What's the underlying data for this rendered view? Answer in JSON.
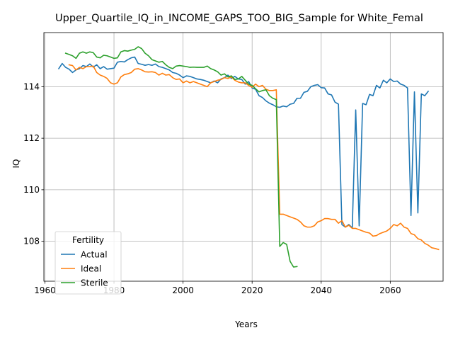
{
  "chart_data": {
    "type": "line",
    "title": "Upper_Quartile_IQ_in_INCOME_GAPS_TOO_BIG_Sample for White_Femal",
    "xlabel": "Years",
    "ylabel": "IQ",
    "xlim": [
      1959.7,
      2075.3
    ],
    "ylim": [
      106.45,
      116.1
    ],
    "x_ticks": [
      1960,
      1980,
      2000,
      2020,
      2040,
      2060
    ],
    "x_tick_labels": [
      "1960",
      "1980",
      "2000",
      "2020",
      "2040",
      "2060"
    ],
    "y_ticks": [
      108,
      110,
      112,
      114
    ],
    "y_tick_labels": [
      "108",
      "110",
      "112",
      "114"
    ],
    "grid": true,
    "legend": {
      "title": "Fertility",
      "placement": "lower-left"
    },
    "series": [
      {
        "name": "Actual",
        "color": "#1f77b4",
        "points": [
          [
            1964,
            114.7
          ],
          [
            1965,
            114.9
          ],
          [
            1966,
            114.75
          ],
          [
            1967,
            114.68
          ],
          [
            1968,
            114.55
          ],
          [
            1969,
            114.65
          ],
          [
            1970,
            114.7
          ],
          [
            1971,
            114.82
          ],
          [
            1972,
            114.78
          ],
          [
            1973,
            114.88
          ],
          [
            1974,
            114.76
          ],
          [
            1975,
            114.85
          ],
          [
            1976,
            114.7
          ],
          [
            1977,
            114.78
          ],
          [
            1978,
            114.68
          ],
          [
            1979,
            114.7
          ],
          [
            1980,
            114.72
          ],
          [
            1981,
            114.95
          ],
          [
            1982,
            114.98
          ],
          [
            1983,
            114.96
          ],
          [
            1984,
            115.05
          ],
          [
            1985,
            115.12
          ],
          [
            1986,
            115.15
          ],
          [
            1987,
            114.9
          ],
          [
            1988,
            114.87
          ],
          [
            1989,
            114.83
          ],
          [
            1990,
            114.86
          ],
          [
            1991,
            114.83
          ],
          [
            1992,
            114.88
          ],
          [
            1993,
            114.78
          ],
          [
            1994,
            114.75
          ],
          [
            1995,
            114.7
          ],
          [
            1996,
            114.65
          ],
          [
            1997,
            114.55
          ],
          [
            1998,
            114.52
          ],
          [
            1999,
            114.45
          ],
          [
            2000,
            114.35
          ],
          [
            2001,
            114.42
          ],
          [
            2002,
            114.4
          ],
          [
            2003,
            114.35
          ],
          [
            2004,
            114.3
          ],
          [
            2005,
            114.28
          ],
          [
            2006,
            114.25
          ],
          [
            2007,
            114.2
          ],
          [
            2008,
            114.15
          ],
          [
            2009,
            114.22
          ],
          [
            2010,
            114.15
          ],
          [
            2011,
            114.3
          ],
          [
            2012,
            114.35
          ],
          [
            2013,
            114.45
          ],
          [
            2014,
            114.32
          ],
          [
            2015,
            114.4
          ],
          [
            2016,
            114.3
          ],
          [
            2017,
            114.28
          ],
          [
            2018,
            114.1
          ],
          [
            2019,
            114.2
          ],
          [
            2020,
            113.95
          ],
          [
            2021,
            113.9
          ],
          [
            2022,
            113.65
          ],
          [
            2023,
            113.58
          ],
          [
            2024,
            113.45
          ],
          [
            2025,
            113.36
          ],
          [
            2026,
            113.3
          ],
          [
            2027,
            113.22
          ],
          [
            2028,
            113.2
          ],
          [
            2029,
            113.25
          ],
          [
            2030,
            113.22
          ],
          [
            2031,
            113.32
          ],
          [
            2032,
            113.35
          ],
          [
            2033,
            113.55
          ],
          [
            2034,
            113.55
          ],
          [
            2035,
            113.78
          ],
          [
            2036,
            113.82
          ],
          [
            2037,
            114.0
          ],
          [
            2038,
            114.05
          ],
          [
            2039,
            114.08
          ],
          [
            2040,
            113.96
          ],
          [
            2041,
            113.95
          ],
          [
            2042,
            113.72
          ],
          [
            2043,
            113.68
          ],
          [
            2044,
            113.4
          ],
          [
            2045,
            113.32
          ],
          [
            2046,
            108.65
          ],
          [
            2047,
            108.55
          ],
          [
            2048,
            108.65
          ],
          [
            2049,
            108.52
          ],
          [
            2050,
            113.1
          ],
          [
            2051,
            108.6
          ],
          [
            2052,
            113.35
          ],
          [
            2053,
            113.3
          ],
          [
            2054,
            113.7
          ],
          [
            2055,
            113.65
          ],
          [
            2056,
            114.05
          ],
          [
            2057,
            113.95
          ],
          [
            2058,
            114.25
          ],
          [
            2059,
            114.15
          ],
          [
            2060,
            114.3
          ],
          [
            2061,
            114.2
          ],
          [
            2062,
            114.22
          ],
          [
            2063,
            114.1
          ],
          [
            2064,
            114.05
          ],
          [
            2065,
            113.95
          ],
          [
            2066,
            109.0
          ],
          [
            2067,
            113.8
          ],
          [
            2068,
            109.1
          ],
          [
            2069,
            113.72
          ],
          [
            2070,
            113.65
          ],
          [
            2071,
            113.82
          ]
        ]
      },
      {
        "name": "Ideal",
        "color": "#ff7f0e",
        "points": [
          [
            1967,
            114.85
          ],
          [
            1968,
            114.82
          ],
          [
            1969,
            114.65
          ],
          [
            1970,
            114.75
          ],
          [
            1971,
            114.7
          ],
          [
            1972,
            114.78
          ],
          [
            1973,
            114.78
          ],
          [
            1974,
            114.8
          ],
          [
            1975,
            114.55
          ],
          [
            1976,
            114.45
          ],
          [
            1977,
            114.4
          ],
          [
            1978,
            114.32
          ],
          [
            1979,
            114.15
          ],
          [
            1980,
            114.1
          ],
          [
            1981,
            114.15
          ],
          [
            1982,
            114.38
          ],
          [
            1983,
            114.47
          ],
          [
            1984,
            114.5
          ],
          [
            1985,
            114.55
          ],
          [
            1986,
            114.68
          ],
          [
            1987,
            114.7
          ],
          [
            1988,
            114.65
          ],
          [
            1989,
            114.58
          ],
          [
            1990,
            114.57
          ],
          [
            1991,
            114.58
          ],
          [
            1992,
            114.55
          ],
          [
            1993,
            114.45
          ],
          [
            1994,
            114.52
          ],
          [
            1995,
            114.45
          ],
          [
            1996,
            114.47
          ],
          [
            1997,
            114.35
          ],
          [
            1998,
            114.28
          ],
          [
            1999,
            114.3
          ],
          [
            2000,
            114.15
          ],
          [
            2001,
            114.22
          ],
          [
            2002,
            114.15
          ],
          [
            2003,
            114.2
          ],
          [
            2004,
            114.15
          ],
          [
            2005,
            114.1
          ],
          [
            2006,
            114.05
          ],
          [
            2007,
            114.0
          ],
          [
            2008,
            114.15
          ],
          [
            2009,
            114.2
          ],
          [
            2010,
            114.25
          ],
          [
            2011,
            114.28
          ],
          [
            2012,
            114.35
          ],
          [
            2013,
            114.32
          ],
          [
            2014,
            114.38
          ],
          [
            2015,
            114.25
          ],
          [
            2016,
            114.18
          ],
          [
            2017,
            114.15
          ],
          [
            2018,
            114.15
          ],
          [
            2019,
            114.05
          ],
          [
            2020,
            113.98
          ],
          [
            2021,
            114.1
          ],
          [
            2022,
            114.0
          ],
          [
            2023,
            114.05
          ],
          [
            2024,
            113.9
          ],
          [
            2025,
            113.85
          ],
          [
            2026,
            113.85
          ],
          [
            2027,
            113.88
          ],
          [
            2028,
            109.05
          ],
          [
            2029,
            109.05
          ],
          [
            2030,
            109.0
          ],
          [
            2031,
            108.95
          ],
          [
            2032,
            108.9
          ],
          [
            2033,
            108.85
          ],
          [
            2034,
            108.75
          ],
          [
            2035,
            108.6
          ],
          [
            2036,
            108.55
          ],
          [
            2037,
            108.55
          ],
          [
            2038,
            108.6
          ],
          [
            2039,
            108.75
          ],
          [
            2040,
            108.8
          ],
          [
            2041,
            108.88
          ],
          [
            2042,
            108.88
          ],
          [
            2043,
            108.85
          ],
          [
            2044,
            108.85
          ],
          [
            2045,
            108.7
          ],
          [
            2046,
            108.8
          ],
          [
            2047,
            108.55
          ],
          [
            2048,
            108.62
          ],
          [
            2049,
            108.5
          ],
          [
            2050,
            108.5
          ],
          [
            2051,
            108.45
          ],
          [
            2052,
            108.4
          ],
          [
            2053,
            108.35
          ],
          [
            2054,
            108.32
          ],
          [
            2055,
            108.2
          ],
          [
            2056,
            108.22
          ],
          [
            2057,
            108.3
          ],
          [
            2058,
            108.35
          ],
          [
            2059,
            108.4
          ],
          [
            2060,
            108.5
          ],
          [
            2061,
            108.65
          ],
          [
            2062,
            108.6
          ],
          [
            2063,
            108.7
          ],
          [
            2064,
            108.55
          ],
          [
            2065,
            108.5
          ],
          [
            2066,
            108.3
          ],
          [
            2067,
            108.25
          ],
          [
            2068,
            108.1
          ],
          [
            2069,
            108.05
          ],
          [
            2070,
            107.92
          ],
          [
            2071,
            107.85
          ],
          [
            2072,
            107.75
          ],
          [
            2073,
            107.72
          ],
          [
            2074,
            107.68
          ]
        ]
      },
      {
        "name": "Sterile",
        "color": "#2ca02c",
        "points": [
          [
            1966,
            115.3
          ],
          [
            1967,
            115.25
          ],
          [
            1968,
            115.2
          ],
          [
            1969,
            115.1
          ],
          [
            1970,
            115.3
          ],
          [
            1971,
            115.35
          ],
          [
            1972,
            115.3
          ],
          [
            1973,
            115.35
          ],
          [
            1974,
            115.32
          ],
          [
            1975,
            115.15
          ],
          [
            1976,
            115.12
          ],
          [
            1977,
            115.22
          ],
          [
            1978,
            115.2
          ],
          [
            1979,
            115.15
          ],
          [
            1980,
            115.1
          ],
          [
            1981,
            115.12
          ],
          [
            1982,
            115.35
          ],
          [
            1983,
            115.4
          ],
          [
            1984,
            115.38
          ],
          [
            1985,
            115.42
          ],
          [
            1986,
            115.45
          ],
          [
            1987,
            115.55
          ],
          [
            1988,
            115.48
          ],
          [
            1989,
            115.3
          ],
          [
            1990,
            115.2
          ],
          [
            1991,
            115.05
          ],
          [
            1992,
            115.0
          ],
          [
            1993,
            114.95
          ],
          [
            1994,
            114.98
          ],
          [
            1995,
            114.85
          ],
          [
            1996,
            114.75
          ],
          [
            1997,
            114.7
          ],
          [
            1998,
            114.8
          ],
          [
            1999,
            114.82
          ],
          [
            2000,
            114.8
          ],
          [
            2001,
            114.78
          ],
          [
            2002,
            114.75
          ],
          [
            2003,
            114.76
          ],
          [
            2004,
            114.75
          ],
          [
            2005,
            114.75
          ],
          [
            2006,
            114.75
          ],
          [
            2007,
            114.8
          ],
          [
            2008,
            114.7
          ],
          [
            2009,
            114.65
          ],
          [
            2010,
            114.58
          ],
          [
            2011,
            114.45
          ],
          [
            2012,
            114.5
          ],
          [
            2013,
            114.38
          ],
          [
            2014,
            114.42
          ],
          [
            2015,
            114.28
          ],
          [
            2016,
            114.3
          ],
          [
            2017,
            114.4
          ],
          [
            2018,
            114.25
          ],
          [
            2019,
            114.1
          ],
          [
            2020,
            114.05
          ],
          [
            2021,
            113.92
          ],
          [
            2022,
            113.8
          ],
          [
            2023,
            113.85
          ],
          [
            2024,
            113.88
          ],
          [
            2025,
            113.65
          ],
          [
            2026,
            113.55
          ],
          [
            2027,
            113.5
          ],
          [
            2028,
            107.8
          ],
          [
            2029,
            107.95
          ],
          [
            2030,
            107.88
          ],
          [
            2031,
            107.22
          ],
          [
            2032,
            107.0
          ],
          [
            2033,
            107.02
          ]
        ]
      }
    ]
  }
}
